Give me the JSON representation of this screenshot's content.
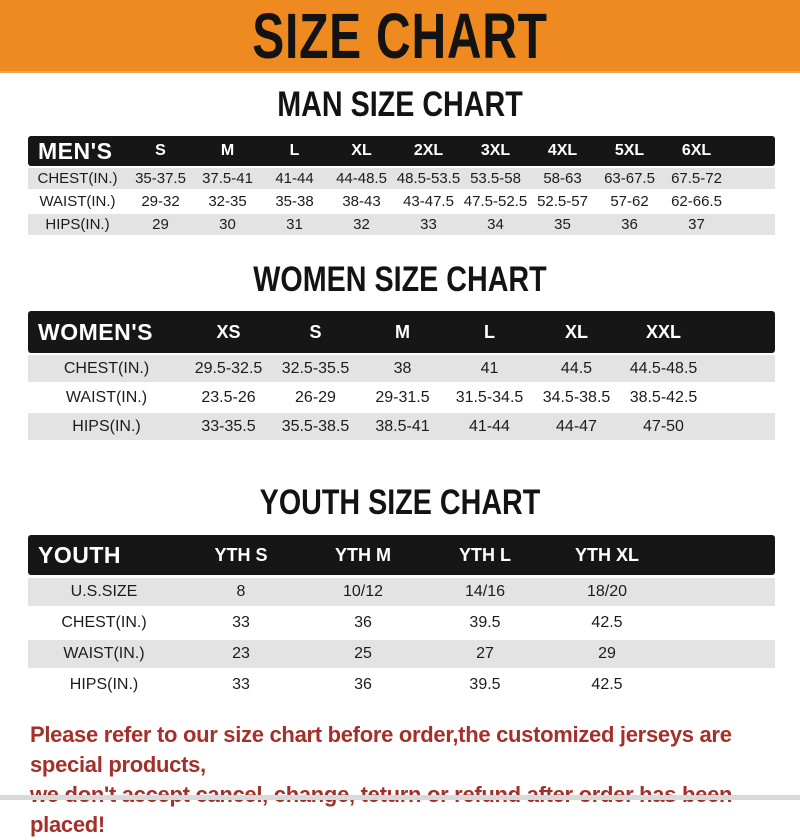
{
  "banner": {
    "title": "SIZE CHART"
  },
  "sections": [
    {
      "id": "men",
      "heading": "MAN SIZE CHART",
      "corner_label": "MEN'S",
      "columns": [
        "S",
        "M",
        "L",
        "XL",
        "2XL",
        "3XL",
        "4XL",
        "5XL",
        "6XL"
      ],
      "rows": [
        {
          "label": "CHEST(IN.)",
          "values": [
            "35-37.5",
            "37.5-41",
            "41-44",
            "44-48.5",
            "48.5-53.5",
            "53.5-58",
            "58-63",
            "63-67.5",
            "67.5-72"
          ]
        },
        {
          "label": "WAIST(IN.)",
          "values": [
            "29-32",
            "32-35",
            "35-38",
            "38-43",
            "43-47.5",
            "47.5-52.5",
            "52.5-57",
            "57-62",
            "62-66.5"
          ]
        },
        {
          "label": "HIPS(IN.)",
          "values": [
            "29",
            "30",
            "31",
            "32",
            "33",
            "34",
            "35",
            "36",
            "37"
          ]
        }
      ]
    },
    {
      "id": "women",
      "heading": "WOMEN SIZE CHART",
      "corner_label": "WOMEN'S",
      "columns": [
        "XS",
        "S",
        "M",
        "L",
        "XL",
        "XXL"
      ],
      "rows": [
        {
          "label": "CHEST(IN.)",
          "values": [
            "29.5-32.5",
            "32.5-35.5",
            "38",
            "41",
            "44.5",
            "44.5-48.5"
          ]
        },
        {
          "label": "WAIST(IN.)",
          "values": [
            "23.5-26",
            "26-29",
            "29-31.5",
            "31.5-34.5",
            "34.5-38.5",
            "38.5-42.5"
          ]
        },
        {
          "label": "HIPS(IN.)",
          "values": [
            "33-35.5",
            "35.5-38.5",
            "38.5-41",
            "41-44",
            "44-47",
            "47-50"
          ]
        }
      ]
    },
    {
      "id": "youth",
      "heading": "YOUTH SIZE CHART",
      "corner_label": "YOUTH",
      "columns": [
        "YTH S",
        "YTH M",
        "YTH L",
        "YTH XL"
      ],
      "rows": [
        {
          "label": "U.S.SIZE",
          "values": [
            "8",
            "10/12",
            "14/16",
            "18/20"
          ]
        },
        {
          "label": "CHEST(IN.)",
          "values": [
            "33",
            "36",
            "39.5",
            "42.5"
          ]
        },
        {
          "label": "WAIST(IN.)",
          "values": [
            "23",
            "25",
            "27",
            "29"
          ]
        },
        {
          "label": "HIPS(IN.)",
          "values": [
            "33",
            "36",
            "39.5",
            "42.5"
          ]
        }
      ]
    }
  ],
  "footer": {
    "line1": "Please refer to our size chart before order,the customized jerseys are special products,",
    "line2": "we don't accept cancel, change, teturn or refund after order has been placed!"
  },
  "colors": {
    "banner_bg": "#EE8A20",
    "header_bg": "#161616",
    "row_alt_bg": "#E3E3E3",
    "footer_text": "#A3302A"
  }
}
